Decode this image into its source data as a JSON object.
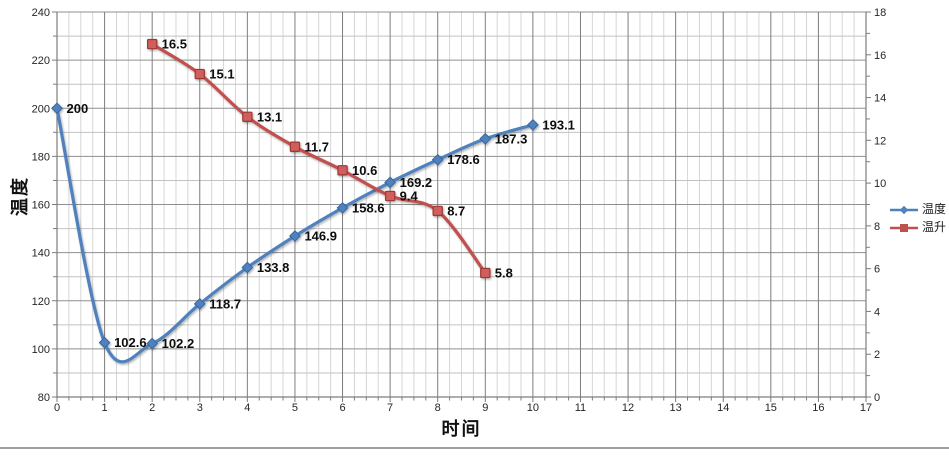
{
  "chart_data": {
    "type": "line",
    "title": "",
    "xlabel": "时间",
    "ylabel": "温度",
    "grid": true,
    "legend_position": "right",
    "x_range": [
      0,
      17
    ],
    "x_tick_step": 1,
    "x_minor_step": 0.25,
    "left_axis": {
      "min": 80,
      "max": 240,
      "label_step": 20,
      "minor_step": 10
    },
    "right_axis": {
      "min": 0,
      "max": 18,
      "label_step": 2,
      "minor_step": 1
    },
    "series": [
      {
        "name": "温度",
        "axis": "left",
        "marker": "diamond",
        "color": "#4F81BD",
        "marker_stroke": "#38669E",
        "x": [
          0,
          1,
          2,
          3,
          4,
          5,
          6,
          7,
          8,
          9,
          10
        ],
        "values": [
          200,
          102.6,
          102.2,
          118.7,
          133.8,
          146.9,
          158.6,
          169.2,
          178.6,
          187.3,
          193.1
        ],
        "labels": [
          "200",
          "102.6",
          "102.2",
          "118.7",
          "133.8",
          "146.9",
          "158.6",
          "169.2",
          "178.6",
          "187.3",
          "193.1"
        ]
      },
      {
        "name": "温升",
        "axis": "right",
        "marker": "square",
        "color": "#C0504D",
        "marker_fill": "#CF5F5B",
        "marker_stroke": "#9C3734",
        "x": [
          2,
          3,
          4,
          5,
          6,
          7,
          8,
          9
        ],
        "values": [
          16.5,
          15.1,
          13.1,
          11.7,
          10.6,
          9.4,
          8.7,
          5.8
        ],
        "labels": [
          "16.5",
          "15.1",
          "13.1",
          "11.7",
          "10.6",
          "9.4",
          "8.7",
          "5.8"
        ]
      }
    ],
    "legend": {
      "items": [
        {
          "label": "温度",
          "color": "#4F81BD",
          "marker": "diamond"
        },
        {
          "label": "温升",
          "color": "#C0504D",
          "marker": "square"
        }
      ]
    }
  },
  "style_colors": {
    "grid_minor_v": "#d6d6d6",
    "grid_major_v": "#7d7d7d",
    "grid_minor_h": "#c2c2c2",
    "grid_major_h": "#8f8f8f",
    "axis_line": "#7d7d7d",
    "tick_label": "#262626",
    "data_label": "#0d0d0d"
  }
}
